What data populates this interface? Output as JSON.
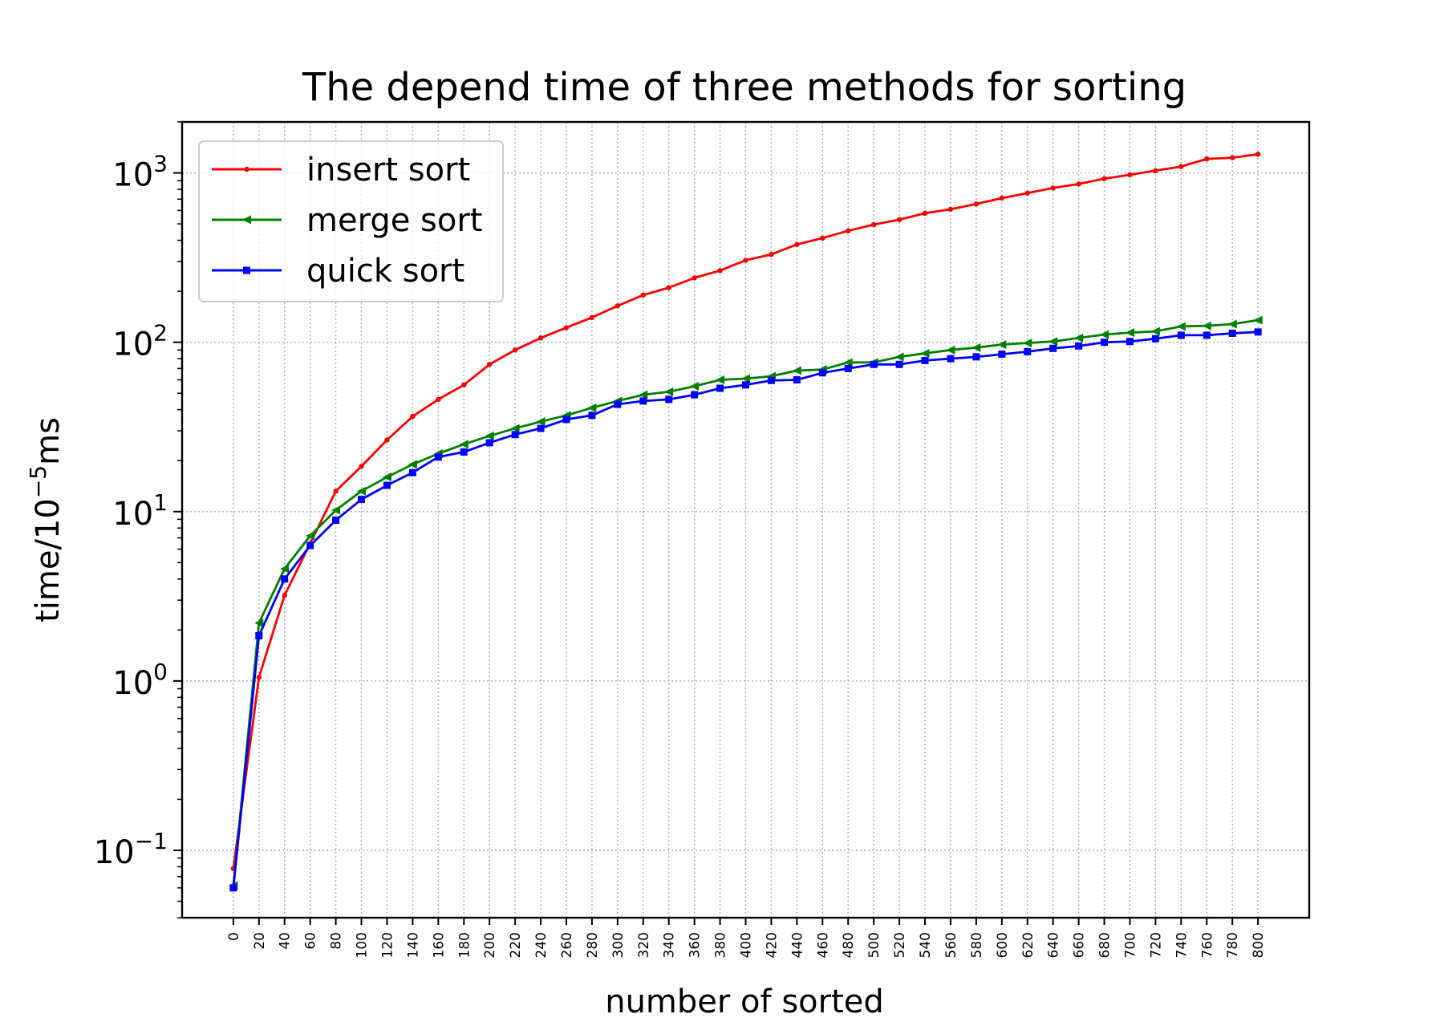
{
  "chart_data": {
    "type": "line",
    "title": "The depend time of three methods for sorting",
    "xlabel": "number of sorted",
    "ylabel_base": "time/10",
    "ylabel_exp": "−5",
    "ylabel_unit": "ms",
    "y_scale": "log",
    "ylim": [
      0.04,
      2000
    ],
    "xlim": [
      -40,
      840
    ],
    "grid": true,
    "legend_position": "top-left",
    "x": [
      0,
      20,
      40,
      60,
      80,
      100,
      120,
      140,
      160,
      180,
      200,
      220,
      240,
      260,
      280,
      300,
      320,
      340,
      360,
      380,
      400,
      420,
      440,
      460,
      480,
      500,
      520,
      540,
      560,
      580,
      600,
      620,
      640,
      660,
      680,
      700,
      720,
      740,
      760,
      780,
      800
    ],
    "x_tick_labels": [
      "0",
      "20",
      "40",
      "60",
      "80",
      "100",
      "120",
      "140",
      "160",
      "180",
      "200",
      "220",
      "240",
      "260",
      "280",
      "300",
      "320",
      "340",
      "360",
      "380",
      "400",
      "420",
      "440",
      "460",
      "480",
      "500",
      "520",
      "540",
      "560",
      "580",
      "600",
      "620",
      "640",
      "660",
      "680",
      "700",
      "720",
      "740",
      "760",
      "780",
      "800"
    ],
    "y_ticks": [
      {
        "value": 0.1,
        "base": "10",
        "exp": "−1"
      },
      {
        "value": 1,
        "base": "10",
        "exp": "0"
      },
      {
        "value": 10,
        "base": "10",
        "exp": "1"
      },
      {
        "value": 100,
        "base": "10",
        "exp": "2"
      },
      {
        "value": 1000,
        "base": "10",
        "exp": "3"
      }
    ],
    "series": [
      {
        "name": "insert sort",
        "color": "#ff0000",
        "marker": "dot",
        "values": [
          0.078,
          1.05,
          3.2,
          6.5,
          13.2,
          18.5,
          26.5,
          36.5,
          46,
          56,
          74,
          90,
          106,
          122,
          140,
          164,
          190,
          210,
          240,
          265,
          305,
          330,
          378,
          412,
          455,
          495,
          530,
          578,
          610,
          655,
          710,
          760,
          815,
          860,
          925,
          975,
          1030,
          1090,
          1210,
          1230,
          1290
        ]
      },
      {
        "name": "merge sort",
        "color": "#008000",
        "marker": "triangle-left",
        "values": [
          0.062,
          2.2,
          4.6,
          7.2,
          10.2,
          13.2,
          16,
          19,
          22,
          25,
          28,
          31,
          34,
          37,
          41,
          45,
          49,
          51,
          55,
          60,
          61,
          63,
          68,
          69,
          76,
          76,
          82,
          86,
          90,
          93,
          97,
          99,
          101,
          106,
          111,
          114,
          116,
          124,
          125,
          128,
          135
        ]
      },
      {
        "name": "quick sort",
        "color": "#0000ff",
        "marker": "square",
        "values": [
          0.06,
          1.85,
          4.0,
          6.3,
          8.9,
          11.8,
          14.3,
          17,
          21,
          22.5,
          25.5,
          28.5,
          31,
          35,
          37,
          43,
          45,
          46,
          49,
          53.5,
          56,
          59.5,
          60,
          66,
          70,
          74,
          74,
          78,
          80,
          82,
          85,
          88,
          92,
          95,
          100,
          101,
          105,
          110,
          110,
          113,
          115
        ]
      }
    ]
  }
}
